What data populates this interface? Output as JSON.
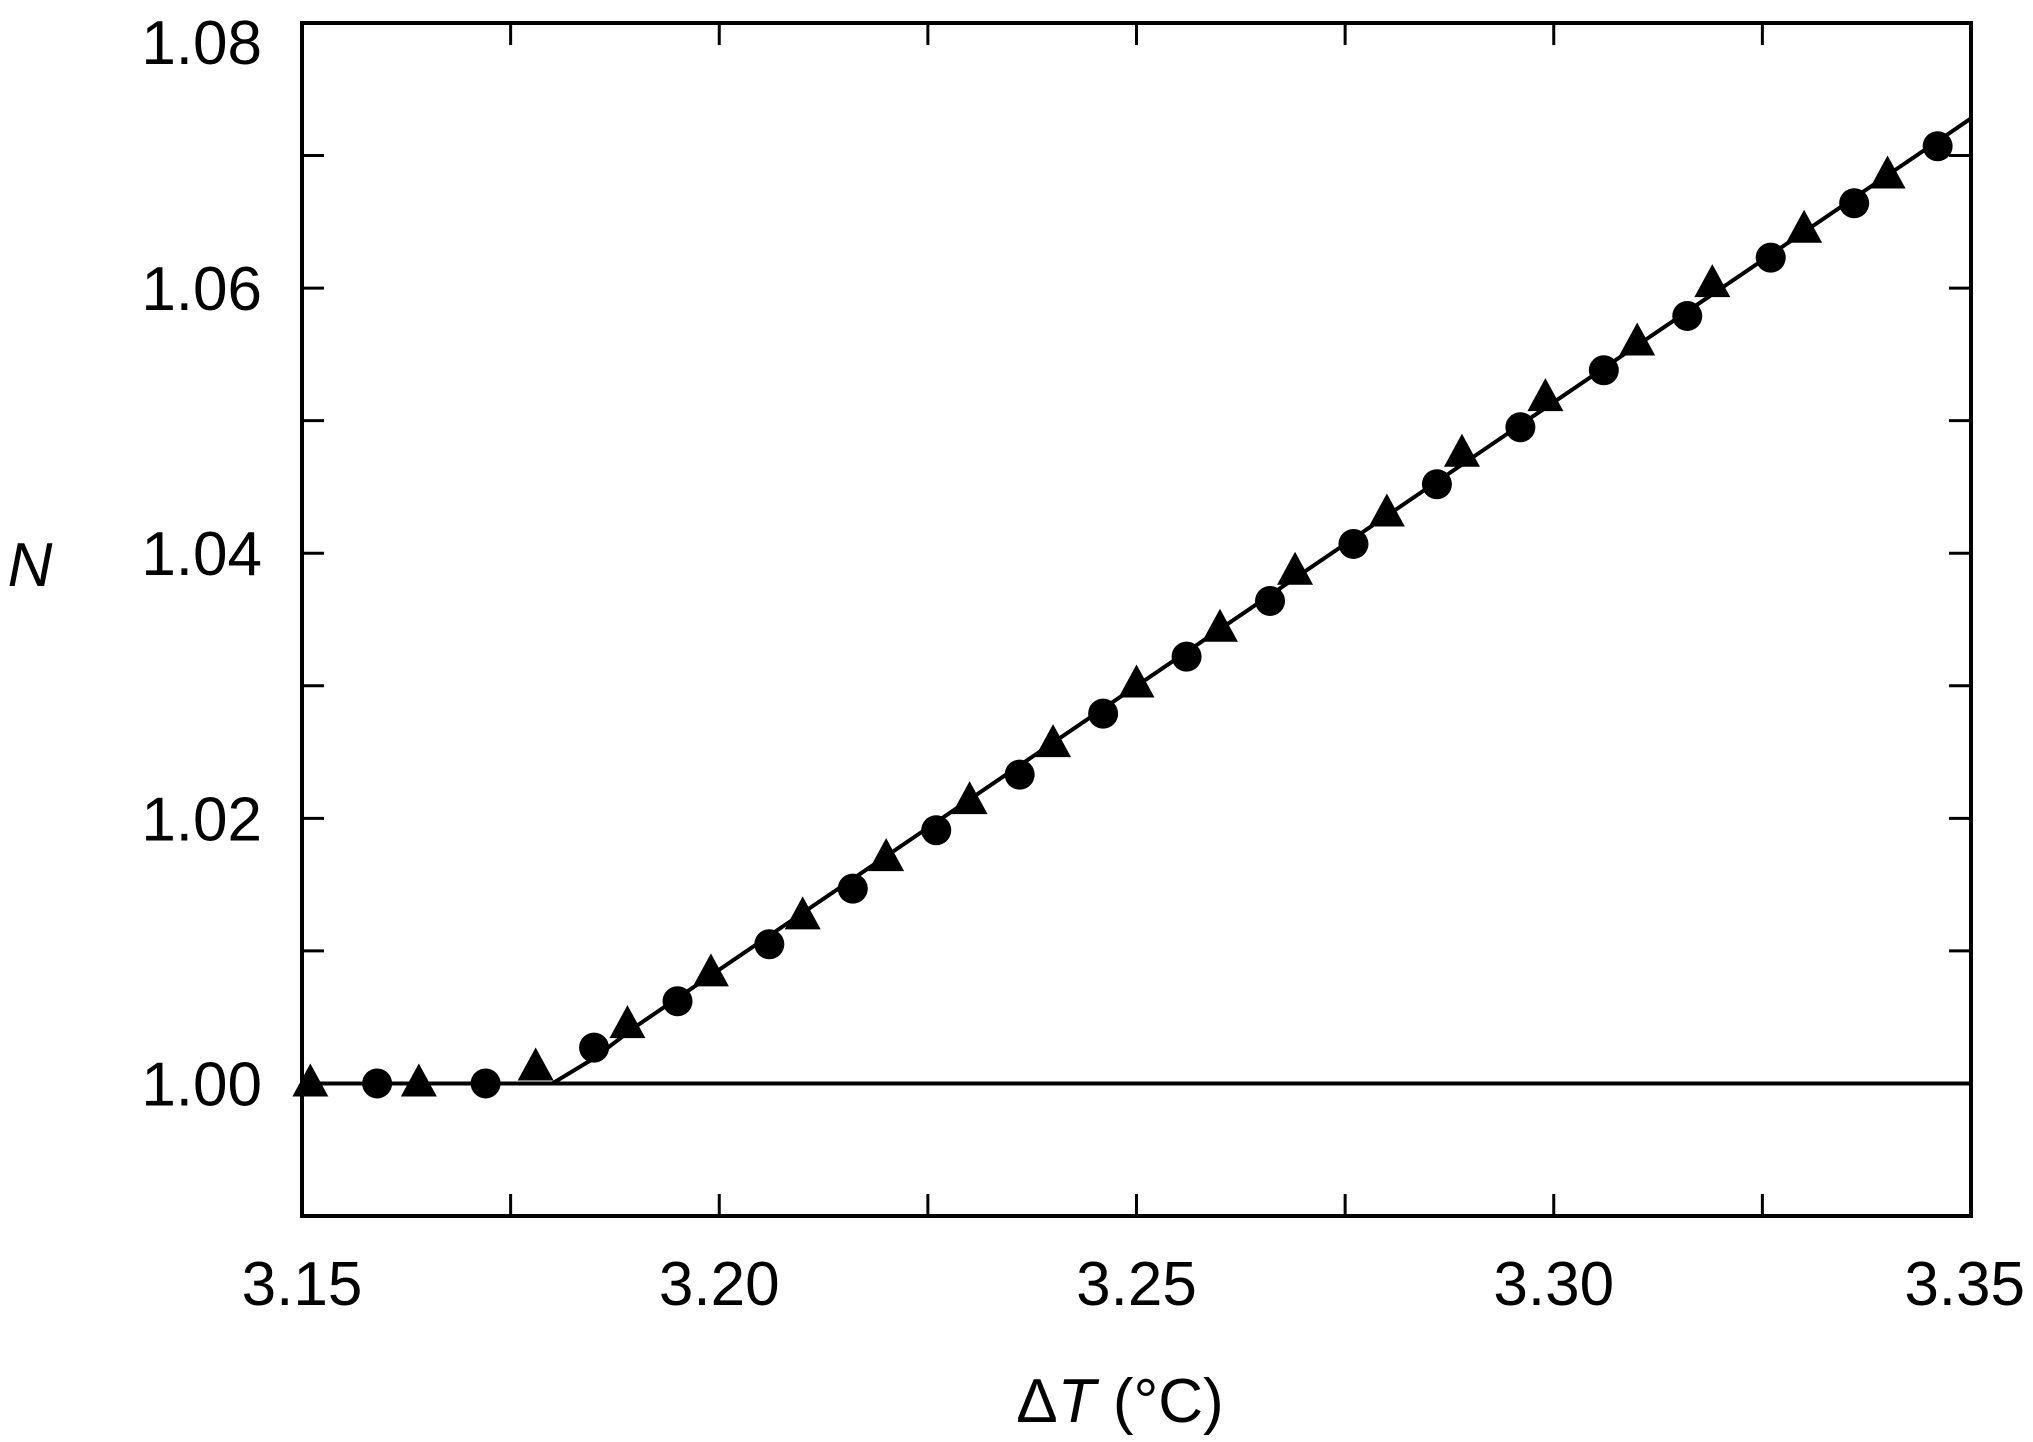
{
  "chart_data": {
    "type": "scatter",
    "xlabel": "ΔT (°C)",
    "ylabel": "N",
    "xlim": [
      3.15,
      3.35
    ],
    "ylim": [
      0.99,
      1.08
    ],
    "xticks": [
      3.15,
      3.2,
      3.25,
      3.3,
      3.35
    ],
    "xtick_labels": [
      "3.15",
      "3.20",
      "3.25",
      "3.30",
      "3.35"
    ],
    "xticks_minor": [
      3.175,
      3.225,
      3.275,
      3.325
    ],
    "yticks": [
      1.0,
      1.02,
      1.04,
      1.06,
      1.08
    ],
    "ytick_labels": [
      "1.00",
      "1.02",
      "1.04",
      "1.06",
      "1.08"
    ],
    "yticks_minor": [
      1.01,
      1.03,
      1.05,
      1.07
    ],
    "grid": false,
    "legend": "none",
    "series": [
      {
        "line": "solid",
        "color": "#000000",
        "points": [
          [
            3.15,
            1.0
          ],
          [
            3.35,
            1.0
          ]
        ]
      },
      {
        "line": "solid",
        "color": "#000000",
        "points": [
          [
            3.15,
            1.0
          ],
          [
            3.18,
            1.0
          ],
          [
            3.185,
            1.0019
          ],
          [
            3.19,
            1.0043
          ],
          [
            3.35,
            1.0728
          ]
        ]
      },
      {
        "marker": "circle",
        "color": "#000000",
        "points": [
          [
            3.159,
            1.0
          ],
          [
            3.172,
            1.0
          ],
          [
            3.185,
            1.0027
          ],
          [
            3.195,
            1.0062
          ],
          [
            3.206,
            1.0105
          ],
          [
            3.216,
            1.0147
          ],
          [
            3.226,
            1.0191
          ],
          [
            3.236,
            1.0233
          ],
          [
            3.246,
            1.0279
          ],
          [
            3.256,
            1.0322
          ],
          [
            3.266,
            1.0364
          ],
          [
            3.276,
            1.0407
          ],
          [
            3.286,
            1.0452
          ],
          [
            3.296,
            1.0495
          ],
          [
            3.306,
            1.0538
          ],
          [
            3.316,
            1.0579
          ],
          [
            3.326,
            1.0623
          ],
          [
            3.336,
            1.0664
          ],
          [
            3.346,
            1.0707
          ]
        ]
      },
      {
        "marker": "triangle",
        "color": "#000000",
        "points": [
          [
            3.151,
            1.0
          ],
          [
            3.164,
            1.0
          ],
          [
            3.178,
            1.0012
          ],
          [
            3.189,
            1.0044
          ],
          [
            3.199,
            1.0083
          ],
          [
            3.21,
            1.0126
          ],
          [
            3.22,
            1.017
          ],
          [
            3.23,
            1.0213
          ],
          [
            3.24,
            1.0256
          ],
          [
            3.25,
            1.0301
          ],
          [
            3.26,
            1.0343
          ],
          [
            3.269,
            1.0386
          ],
          [
            3.28,
            1.043
          ],
          [
            3.289,
            1.0475
          ],
          [
            3.299,
            1.0517
          ],
          [
            3.31,
            1.0559
          ],
          [
            3.319,
            1.0603
          ],
          [
            3.33,
            1.0644
          ],
          [
            3.34,
            1.0685
          ]
        ]
      }
    ]
  }
}
